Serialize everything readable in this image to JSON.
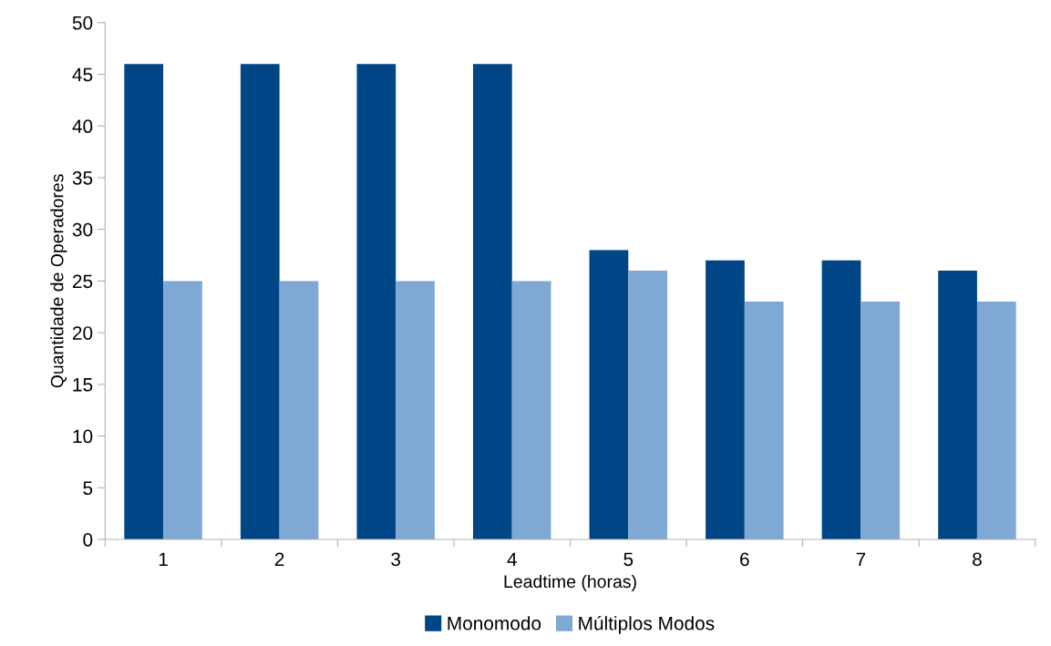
{
  "chart_data": {
    "type": "bar",
    "xlabel": "Leadtime (horas)",
    "ylabel": "Quantidade de Operadores",
    "categories": [
      "1",
      "2",
      "3",
      "4",
      "5",
      "6",
      "7",
      "8"
    ],
    "series": [
      {
        "name": "Monomodo",
        "color": "#004586",
        "values": [
          46,
          46,
          46,
          46,
          28,
          27,
          27,
          26
        ]
      },
      {
        "name": "Múltiplos Modos",
        "color": "#7fa8d5",
        "values": [
          25,
          25,
          25,
          25,
          26,
          23,
          23,
          23
        ]
      }
    ],
    "ylim": [
      0,
      50
    ],
    "yticks": [
      0,
      5,
      10,
      15,
      20,
      25,
      30,
      35,
      40,
      45,
      50
    ],
    "grid": false,
    "legend": "bottom"
  }
}
